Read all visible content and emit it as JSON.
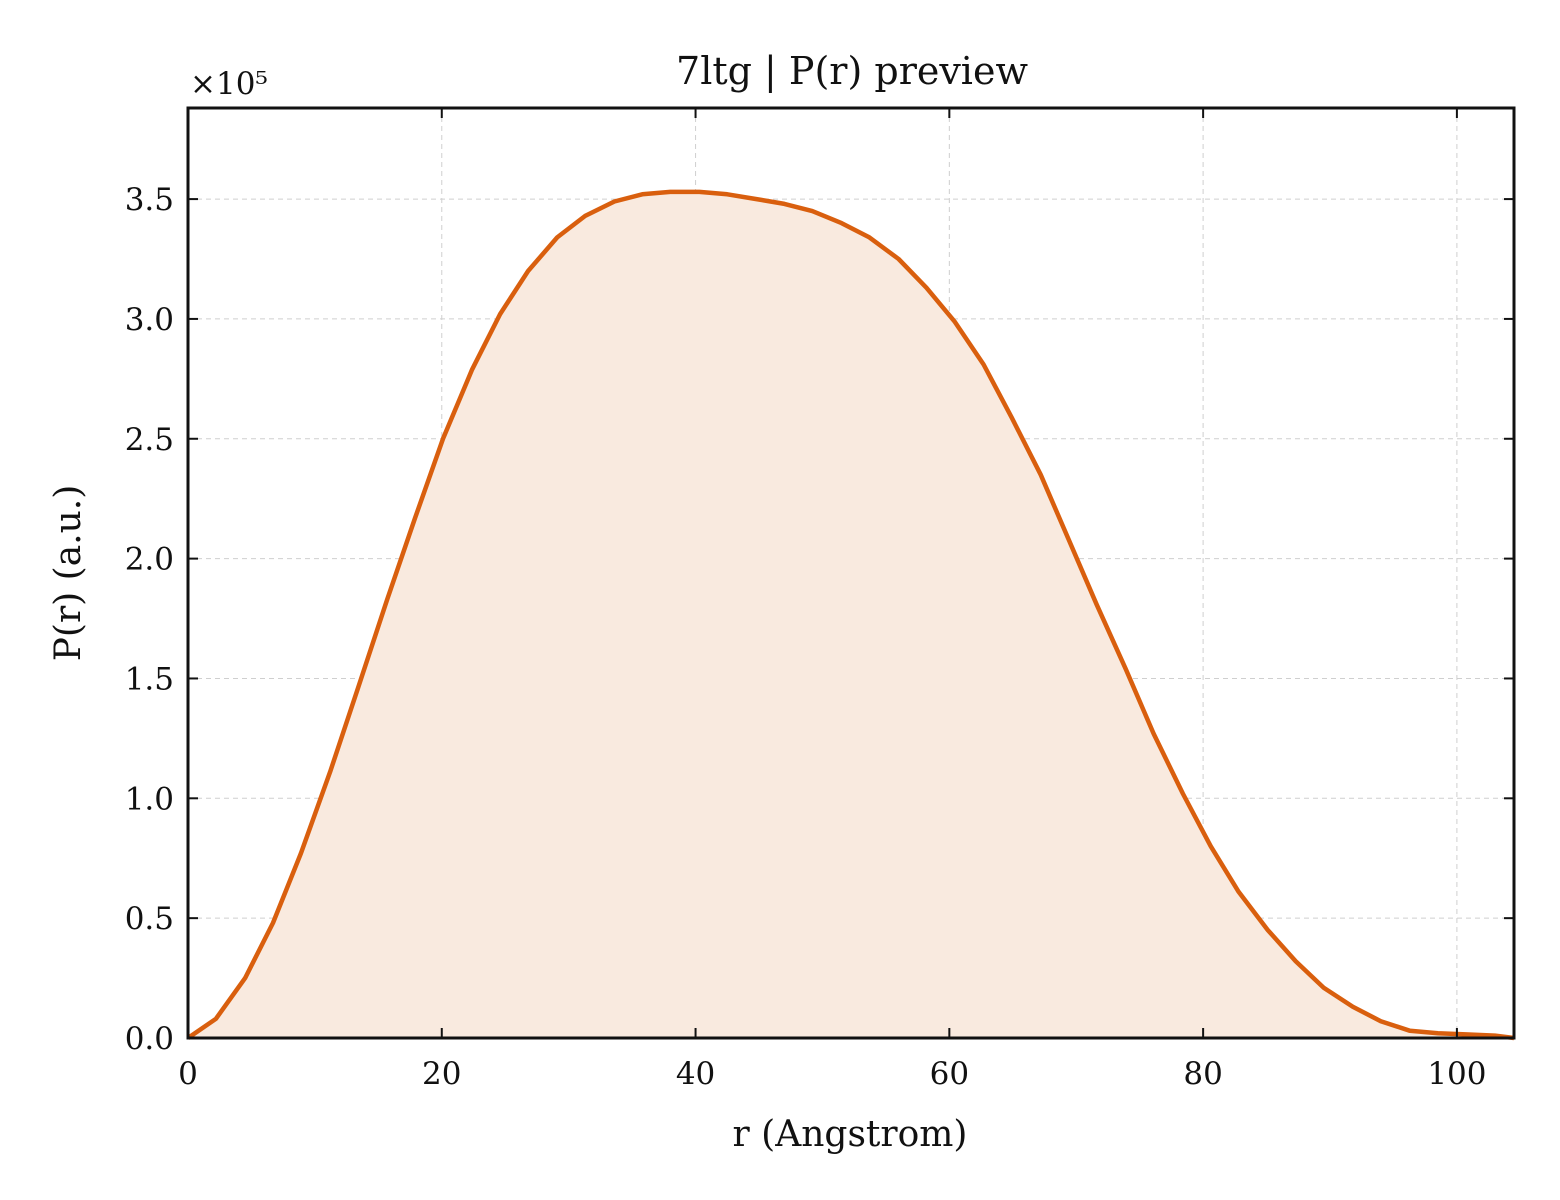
{
  "chart_data": {
    "type": "area",
    "title": "7ltg | P(r) preview",
    "xlabel": "r (Angstrom)",
    "ylabel": "P(r) (a.u.)",
    "y_scale_label": "×10⁵",
    "y_scale_factor": 100000,
    "xlim": [
      0,
      104.5
    ],
    "ylim": [
      0,
      388000
    ],
    "x_ticks": [
      0,
      20,
      40,
      60,
      80,
      100
    ],
    "x_tick_labels": [
      "0",
      "20",
      "40",
      "60",
      "80",
      "100"
    ],
    "y_ticks": [
      0,
      50000,
      100000,
      150000,
      200000,
      250000,
      300000,
      350000
    ],
    "y_tick_labels": [
      "0.0",
      "0.5",
      "1.0",
      "1.5",
      "2.0",
      "2.5",
      "3.0",
      "3.5"
    ],
    "grid": true,
    "colors": {
      "line": "#d95f0e",
      "fill": "#f9eadf"
    },
    "series": [
      {
        "x": [
          0,
          2.2,
          4.5,
          6.7,
          8.9,
          11.2,
          13.4,
          15.7,
          17.9,
          20.1,
          22.4,
          24.6,
          26.8,
          29.1,
          31.3,
          33.6,
          35.8,
          38.0,
          40.3,
          42.5,
          44.8,
          47.0,
          49.2,
          51.5,
          53.7,
          56.0,
          58.2,
          60.4,
          62.7,
          64.9,
          67.2,
          69.4,
          71.6,
          73.9,
          76.1,
          78.4,
          80.6,
          82.8,
          85.1,
          87.3,
          89.5,
          91.8,
          94.0,
          96.3,
          98.5,
          100.7,
          103.0,
          104.5
        ],
        "y": [
          0,
          8000,
          25000,
          48000,
          77000,
          111000,
          146000,
          183000,
          217000,
          250000,
          279000,
          302000,
          320000,
          334000,
          343000,
          349000,
          352000,
          353000,
          353000,
          352000,
          350000,
          348000,
          345000,
          340000,
          334000,
          325000,
          313000,
          299000,
          281000,
          259000,
          235000,
          208000,
          181000,
          154000,
          127000,
          102000,
          80000,
          61000,
          45000,
          32000,
          21000,
          13000,
          7000,
          3000,
          2000,
          1500,
          1000,
          0
        ]
      }
    ]
  }
}
